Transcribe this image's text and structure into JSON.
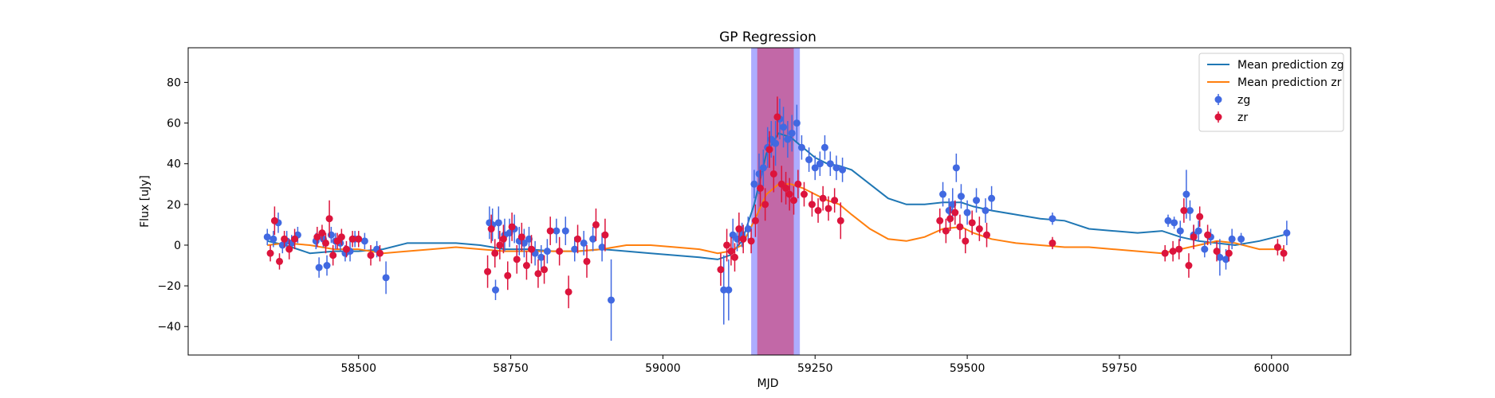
{
  "chart_data": {
    "type": "scatter",
    "title": "GP Regression",
    "xlabel": "MJD",
    "ylabel": "Flux [uJy]",
    "xlim": [
      58220,
      60130
    ],
    "ylim": [
      -54,
      97
    ],
    "xticks": [
      58500,
      58750,
      59000,
      59250,
      59500,
      59750,
      60000
    ],
    "yticks": [
      -40,
      -20,
      0,
      20,
      40,
      60,
      80
    ],
    "grid": false,
    "legend": {
      "placement": "top-right",
      "entries": [
        {
          "label": "Mean prediction zg",
          "kind": "line",
          "color": "#1f77b4"
        },
        {
          "label": "Mean prediction zr",
          "kind": "line",
          "color": "#ff7f0e"
        },
        {
          "label": "zg",
          "kind": "marker",
          "color": "#4169e1"
        },
        {
          "label": "zr",
          "kind": "marker",
          "color": "#dc143c"
        }
      ]
    },
    "bands": [
      {
        "name": "zg",
        "x_start": 59145,
        "x_end": 59225,
        "color": "#6a6aff",
        "opacity": 0.55
      },
      {
        "name": "zr",
        "x_start": 59155,
        "x_end": 59215,
        "color": "#dc143c",
        "opacity": 0.45
      }
    ],
    "series": [
      {
        "name": "Mean prediction zg",
        "kind": "line",
        "color": "#1f77b4",
        "x": [
          58350,
          58380,
          58420,
          58460,
          58500,
          58540,
          58580,
          58620,
          58660,
          58700,
          58740,
          58780,
          58820,
          58860,
          58900,
          58940,
          58980,
          59020,
          59060,
          59090,
          59110,
          59130,
          59150,
          59170,
          59190,
          59210,
          59230,
          59250,
          59270,
          59290,
          59310,
          59340,
          59370,
          59400,
          59430,
          59460,
          59490,
          59510,
          59540,
          59580,
          59620,
          59660,
          59700,
          59740,
          59780,
          59820,
          59850,
          59880,
          59910,
          59940,
          59980,
          60020
        ],
        "y": [
          2,
          0,
          -4,
          -3,
          -3,
          -2,
          1,
          1,
          1,
          0,
          -2,
          -2,
          -3,
          -3,
          -2,
          -3,
          -4,
          -5,
          -6,
          -7,
          -5,
          2,
          20,
          45,
          55,
          53,
          48,
          43,
          40,
          39,
          37,
          30,
          23,
          20,
          20,
          21,
          21,
          19,
          17,
          15,
          13,
          12,
          8,
          7,
          6,
          7,
          4,
          2,
          1,
          0,
          2,
          5
        ]
      },
      {
        "name": "Mean prediction zr",
        "kind": "line",
        "color": "#ff7f0e",
        "x": [
          58350,
          58380,
          58420,
          58460,
          58500,
          58540,
          58580,
          58620,
          58660,
          58700,
          58740,
          58780,
          58820,
          58860,
          58900,
          58940,
          58980,
          59020,
          59060,
          59090,
          59110,
          59130,
          59150,
          59170,
          59190,
          59210,
          59230,
          59250,
          59270,
          59290,
          59310,
          59340,
          59370,
          59400,
          59430,
          59460,
          59490,
          59510,
          59540,
          59580,
          59620,
          59660,
          59700,
          59740,
          59780,
          59820,
          59850,
          59880,
          59910,
          59940,
          59980,
          60020
        ],
        "y": [
          0,
          1,
          0,
          -2,
          -2,
          -4,
          -3,
          -2,
          -1,
          -2,
          -3,
          -3,
          -3,
          -3,
          -2,
          0,
          0,
          -1,
          -2,
          -4,
          -3,
          0,
          12,
          25,
          30,
          30,
          28,
          25,
          22,
          20,
          15,
          8,
          3,
          2,
          4,
          8,
          9,
          6,
          3,
          1,
          0,
          -1,
          -1,
          -2,
          -3,
          -4,
          -2,
          0,
          2,
          1,
          -2,
          -2
        ]
      },
      {
        "name": "zg",
        "kind": "errorbar",
        "color": "#4169e1",
        "x": [
          58350,
          58360,
          58368,
          58375,
          58382,
          58390,
          58400,
          58430,
          58435,
          58442,
          58448,
          58455,
          58462,
          58470,
          58478,
          58486,
          58494,
          58510,
          58530,
          58545,
          58715,
          58720,
          58725,
          58730,
          58740,
          58748,
          58756,
          58764,
          58772,
          58780,
          58790,
          58800,
          58810,
          58825,
          58840,
          58855,
          58870,
          58885,
          58900,
          58915,
          59100,
          59108,
          59115,
          59122,
          59130,
          59140,
          59150,
          59158,
          59165,
          59172,
          59178,
          59185,
          59192,
          59198,
          59205,
          59212,
          59220,
          59228,
          59240,
          59250,
          59258,
          59266,
          59275,
          59285,
          59295,
          59460,
          59470,
          59476,
          59482,
          59490,
          59500,
          59515,
          59530,
          59540,
          59640,
          59830,
          59840,
          59850,
          59860,
          59866,
          59872,
          59880,
          59890,
          59900,
          59915,
          59925,
          59935,
          59950,
          60025
        ],
        "y": [
          4,
          3,
          11,
          0,
          2,
          1,
          5,
          2,
          -11,
          3,
          -10,
          5,
          2,
          1,
          -4,
          -3,
          3,
          2,
          -2,
          -16,
          11,
          10,
          -22,
          11,
          5,
          6,
          8,
          2,
          1,
          3,
          -4,
          -6,
          -3,
          7,
          7,
          -2,
          1,
          3,
          -1,
          -27,
          -22,
          -22,
          5,
          3,
          5,
          8,
          30,
          35,
          38,
          48,
          52,
          50,
          62,
          58,
          52,
          55,
          60,
          48,
          42,
          38,
          40,
          48,
          40,
          38,
          37,
          25,
          17,
          20,
          38,
          24,
          16,
          22,
          17,
          23,
          13,
          12,
          11,
          7,
          25,
          17,
          5,
          7,
          -2,
          4,
          -6,
          -7,
          3,
          3,
          6
        ],
        "yerr": [
          4,
          4,
          5,
          4,
          5,
          4,
          4,
          4,
          5,
          4,
          5,
          4,
          4,
          4,
          4,
          5,
          4,
          4,
          4,
          8,
          8,
          8,
          5,
          8,
          8,
          7,
          7,
          7,
          7,
          6,
          6,
          6,
          6,
          6,
          7,
          6,
          6,
          6,
          7,
          20,
          17,
          15,
          8,
          6,
          6,
          6,
          7,
          10,
          9,
          10,
          9,
          11,
          10,
          10,
          9,
          9,
          9,
          6,
          6,
          6,
          6,
          6,
          6,
          6,
          6,
          6,
          6,
          8,
          7,
          6,
          6,
          6,
          6,
          6,
          3,
          3,
          3,
          5,
          12,
          5,
          5,
          5,
          4,
          4,
          9,
          5,
          5,
          3,
          6
        ]
      },
      {
        "name": "zr",
        "kind": "errorbar",
        "color": "#dc143c",
        "x": [
          58355,
          58362,
          58370,
          58378,
          58386,
          58395,
          58432,
          58440,
          58446,
          58452,
          58458,
          58465,
          58472,
          58480,
          58490,
          58500,
          58520,
          58535,
          58712,
          58718,
          58724,
          58732,
          58738,
          58745,
          58752,
          58760,
          58768,
          58776,
          58784,
          58795,
          58805,
          58815,
          58830,
          58845,
          58860,
          58875,
          58890,
          58905,
          59095,
          59105,
          59112,
          59118,
          59125,
          59132,
          59145,
          59152,
          59160,
          59168,
          59175,
          59182,
          59188,
          59195,
          59202,
          59208,
          59215,
          59222,
          59232,
          59245,
          59255,
          59263,
          59272,
          59282,
          59292,
          59455,
          59465,
          59472,
          59480,
          59488,
          59497,
          59508,
          59520,
          59532,
          59640,
          59825,
          59838,
          59848,
          59856,
          59864,
          59872,
          59882,
          59895,
          59910,
          59930,
          60010,
          60020
        ],
        "y": [
          -4,
          12,
          -8,
          3,
          -2,
          3,
          4,
          6,
          1,
          13,
          -5,
          2,
          4,
          -2,
          3,
          3,
          -5,
          -4,
          -13,
          8,
          -4,
          0,
          3,
          -15,
          9,
          -7,
          4,
          -10,
          -2,
          -14,
          -12,
          7,
          -3,
          -23,
          3,
          -8,
          10,
          5,
          -12,
          0,
          -3,
          -6,
          8,
          3,
          2,
          12,
          28,
          20,
          47,
          35,
          63,
          30,
          28,
          25,
          22,
          30,
          25,
          20,
          17,
          23,
          18,
          22,
          12,
          12,
          7,
          13,
          16,
          9,
          2,
          11,
          8,
          5,
          1,
          -4,
          -3,
          -2,
          17,
          -10,
          4,
          14,
          5,
          -3,
          -4,
          -1,
          -4
        ],
        "yerr": [
          4,
          7,
          4,
          4,
          5,
          5,
          5,
          4,
          5,
          9,
          5,
          4,
          4,
          4,
          4,
          4,
          5,
          4,
          8,
          7,
          7,
          7,
          7,
          7,
          7,
          7,
          7,
          7,
          7,
          7,
          7,
          7,
          7,
          8,
          7,
          8,
          8,
          8,
          8,
          8,
          7,
          7,
          8,
          7,
          6,
          8,
          9,
          8,
          9,
          9,
          10,
          9,
          8,
          8,
          7,
          7,
          6,
          6,
          6,
          6,
          6,
          6,
          9,
          6,
          6,
          6,
          6,
          6,
          6,
          6,
          6,
          6,
          3,
          4,
          5,
          5,
          6,
          6,
          6,
          5,
          5,
          5,
          4,
          4,
          4
        ]
      }
    ]
  }
}
